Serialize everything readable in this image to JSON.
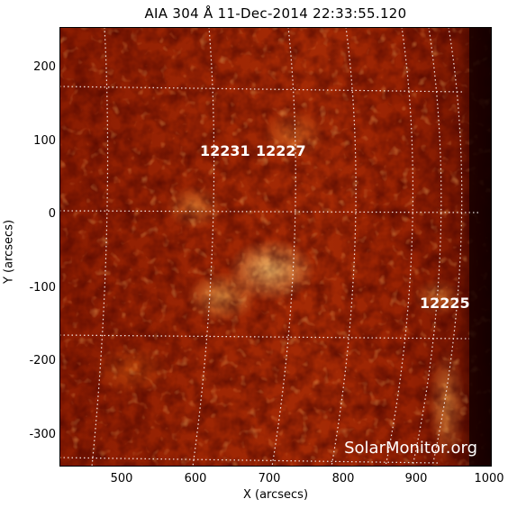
{
  "title": "AIA 304 Å 11-Dec-2014 22:33:55.120",
  "xlabel": "X (arcsecs)",
  "ylabel": "Y (arcsecs)",
  "x_ticks": [
    "500",
    "600",
    "700",
    "800",
    "900",
    "1000"
  ],
  "y_ticks": [
    "200",
    "100",
    "0",
    "-100",
    "-200",
    "-300"
  ],
  "regions": {
    "r1": "12231",
    "r2": "12227",
    "r3": "12225"
  },
  "watermark": "SolarMonitor.org",
  "colors": {
    "solar_disk": "#a52a05",
    "bright_plage": "#ffd27a",
    "off_limb": "#120000",
    "grid": "#ffffff"
  }
}
